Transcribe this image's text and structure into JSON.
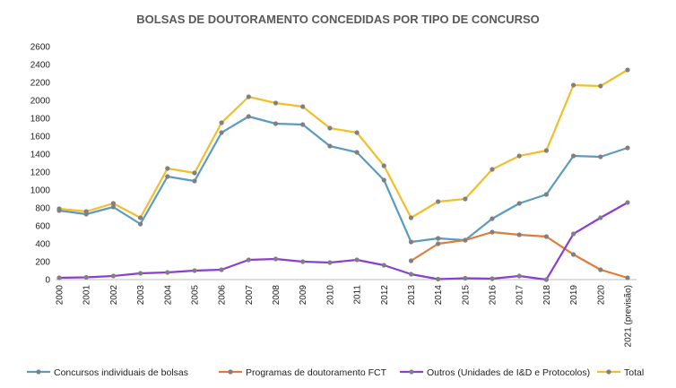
{
  "chart_data": {
    "type": "line",
    "title": "BOLSAS DE DOUTORAMENTO CONCEDIDAS POR TIPO DE CONCURSO",
    "xlabel": "",
    "ylabel": "",
    "ylim": [
      0,
      2600
    ],
    "yticks": [
      0,
      200,
      400,
      600,
      800,
      1000,
      1200,
      1400,
      1600,
      1800,
      2000,
      2200,
      2400,
      2600
    ],
    "grid": false,
    "legend_position": "bottom",
    "categories": [
      "2000",
      "2001",
      "2002",
      "2003",
      "2004",
      "2005",
      "2006",
      "2007",
      "2008",
      "2009",
      "2010",
      "2011",
      "2012",
      "2013",
      "2014",
      "2015",
      "2016",
      "2017",
      "2018",
      "2019",
      "2020",
      "2021 (previsão)"
    ],
    "series": [
      {
        "name": "Concursos individuais de bolsas",
        "color": "#5b9bc0",
        "values": [
          770,
          730,
          810,
          620,
          1150,
          1100,
          1640,
          1820,
          1740,
          1730,
          1490,
          1420,
          1110,
          420,
          460,
          440,
          680,
          850,
          950,
          1380,
          1370,
          1470
        ]
      },
      {
        "name": "Programas de doutoramento FCT",
        "color": "#e07b39",
        "values": [
          null,
          null,
          null,
          null,
          null,
          null,
          null,
          null,
          null,
          null,
          null,
          null,
          null,
          210,
          400,
          440,
          530,
          500,
          480,
          280,
          110,
          20
        ]
      },
      {
        "name": "Outros (Unidades de I&D e Protocolos)",
        "color": "#8a3fcf",
        "values": [
          20,
          25,
          40,
          70,
          80,
          100,
          110,
          220,
          230,
          200,
          190,
          220,
          160,
          60,
          5,
          15,
          10,
          40,
          0,
          510,
          690,
          860
        ]
      },
      {
        "name": "Total",
        "color": "#f2be2c",
        "values": [
          790,
          760,
          850,
          690,
          1240,
          1190,
          1750,
          2040,
          1970,
          1930,
          1690,
          1640,
          1270,
          690,
          870,
          900,
          1230,
          1380,
          1440,
          2170,
          2160,
          2340
        ]
      }
    ]
  }
}
